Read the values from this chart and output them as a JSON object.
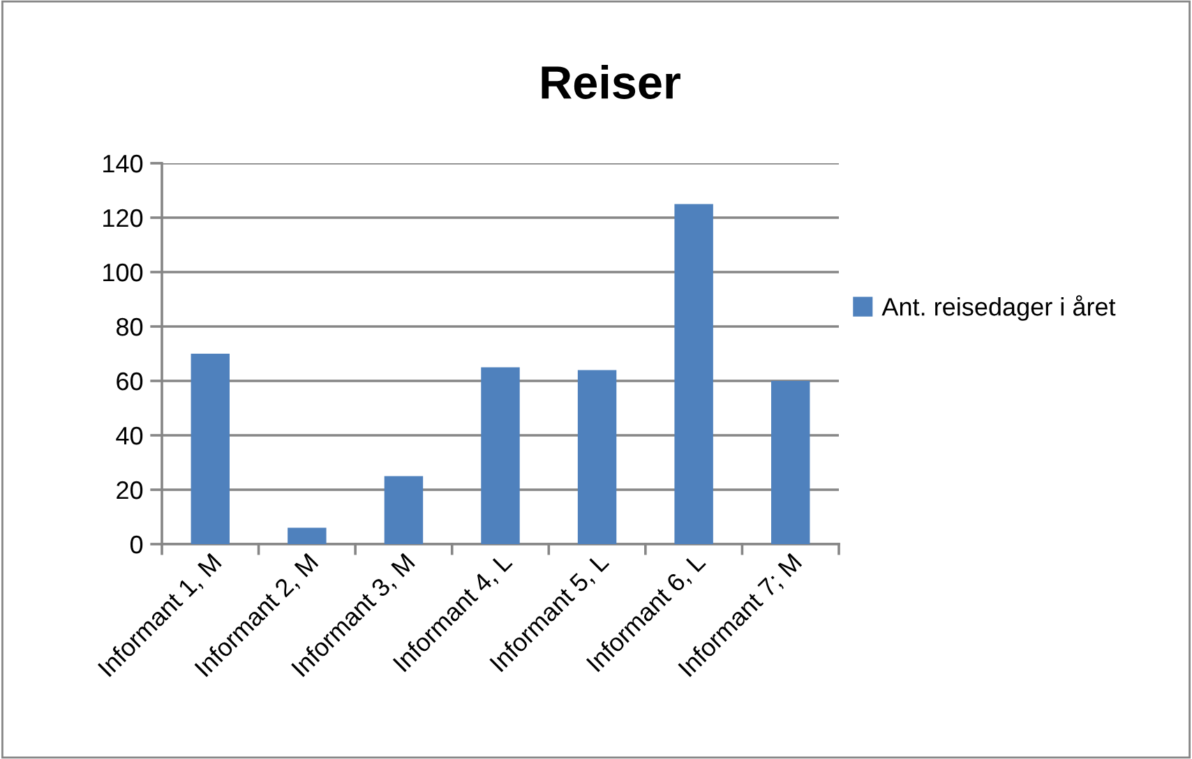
{
  "chart_data": {
    "type": "bar",
    "title": "Reiser",
    "categories": [
      "Informant 1, M",
      "Informant 2, M",
      "Informant 3, M",
      "Informant 4, L",
      "Informant 5, L",
      "Informant 6, L",
      "Informant 7; M"
    ],
    "series": [
      {
        "name": "Ant. reisedager i året",
        "color": "#4f81bd",
        "values": [
          70,
          6,
          25,
          65,
          64,
          125,
          60
        ]
      }
    ],
    "ylim": [
      0,
      140
    ],
    "yticks": [
      0,
      20,
      40,
      60,
      80,
      100,
      120,
      140
    ],
    "grid": "y",
    "legend": "right"
  }
}
